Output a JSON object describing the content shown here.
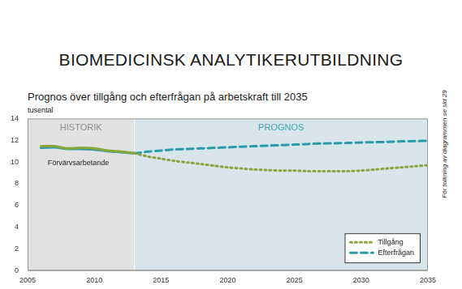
{
  "chart_data": {
    "type": "line",
    "title": "BIOMEDICINSK ANALYTIKERUTBILDNING",
    "subtitle": "Prognos över tillgång och efterfrågan på arbetskraft till 2035",
    "y_label": "tusental",
    "note": "För tolkning av diagrammen se sid 29",
    "x": [
      2006,
      2007,
      2008,
      2009,
      2010,
      2011,
      2012,
      2013,
      2014,
      2015,
      2016,
      2017,
      2018,
      2019,
      2020,
      2021,
      2022,
      2023,
      2024,
      2025,
      2026,
      2027,
      2028,
      2029,
      2030,
      2031,
      2032,
      2033,
      2034,
      2035
    ],
    "series": [
      {
        "name": "Tillgång",
        "color": "#8aa63a",
        "line_style": "dotted",
        "values": [
          11.45,
          11.45,
          11.25,
          11.3,
          11.25,
          11.05,
          10.95,
          10.8,
          10.5,
          10.3,
          10.1,
          9.95,
          9.8,
          9.65,
          9.5,
          9.4,
          9.3,
          9.25,
          9.2,
          9.2,
          9.15,
          9.15,
          9.15,
          9.15,
          9.2,
          9.3,
          9.4,
          9.5,
          9.6,
          9.7
        ]
      },
      {
        "name": "Efterfrågan",
        "color": "#2a9bab",
        "line_style": "dashed",
        "values": [
          11.3,
          11.35,
          11.2,
          11.2,
          11.15,
          11.0,
          10.9,
          10.8,
          10.95,
          11.05,
          11.15,
          11.2,
          11.25,
          11.3,
          11.35,
          11.4,
          11.45,
          11.5,
          11.55,
          11.6,
          11.65,
          11.7,
          11.72,
          11.75,
          11.8,
          11.82,
          11.85,
          11.9,
          11.92,
          11.95
        ]
      }
    ],
    "xlim": [
      2005,
      2035
    ],
    "xticks": [
      2005,
      2010,
      2015,
      2020,
      2025,
      2030,
      2035
    ],
    "ylim": [
      0,
      14
    ],
    "yticks": [
      0,
      2,
      4,
      6,
      8,
      10,
      12,
      14
    ],
    "grid": false,
    "legend": "lower right",
    "annotations": [
      {
        "text": "HISTORIK",
        "x_range": [
          2005,
          2013
        ]
      },
      {
        "text": "PROGNOS",
        "x_range": [
          2013,
          2035
        ]
      },
      {
        "text": "Förvärvsarbetande",
        "x": 2006.5,
        "y": 9.9
      }
    ]
  }
}
